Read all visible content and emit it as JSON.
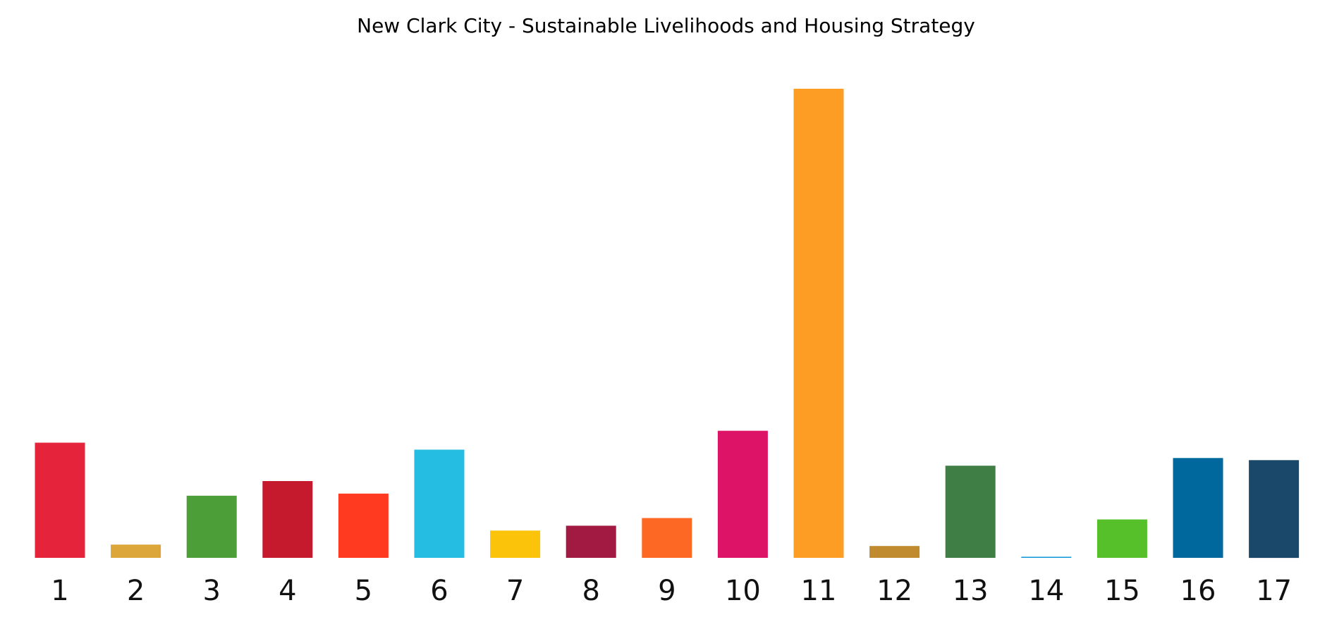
{
  "chart_data": {
    "type": "bar",
    "title": "New Clark City - Sustainable Livelihoods and Housing Strategy",
    "xlabel": "",
    "ylabel": "",
    "categories": [
      "1",
      "2",
      "3",
      "4",
      "5",
      "6",
      "7",
      "8",
      "9",
      "10",
      "11",
      "12",
      "13",
      "14",
      "15",
      "16",
      "17"
    ],
    "values": [
      165,
      19,
      89,
      110,
      92,
      155,
      39,
      46,
      57,
      182,
      672,
      17,
      132,
      1,
      55,
      143,
      140
    ],
    "colors": [
      "#E5243B",
      "#DDA63A",
      "#4C9F38",
      "#C5192D",
      "#FF3A21",
      "#26BDE2",
      "#FCC30B",
      "#A21942",
      "#FD6925",
      "#DD1367",
      "#FD9D24",
      "#BF8B2E",
      "#3F7E44",
      "#0A97D9",
      "#56C02B",
      "#00689D",
      "#19486A"
    ],
    "ylim": [
      0,
      672
    ],
    "grid": false,
    "legend": "none"
  }
}
